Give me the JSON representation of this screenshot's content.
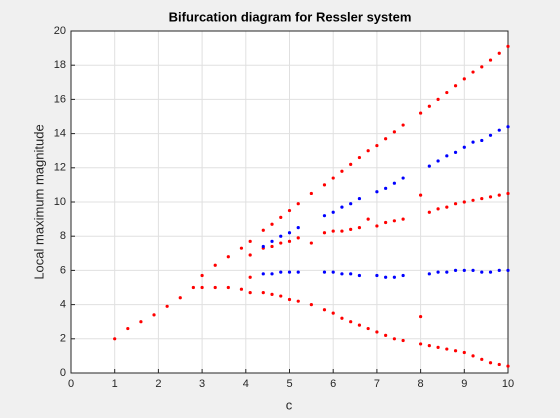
{
  "chart_data": {
    "type": "scatter",
    "title": "Bifurcation diagram for Ressler system",
    "x_label": "c",
    "y_label": "Local maximum magnitude",
    "xlim": [
      0,
      10
    ],
    "xticks": [
      0,
      1,
      2,
      3,
      4,
      5,
      6,
      7,
      8,
      9,
      10
    ],
    "ylim": [
      0,
      20
    ],
    "yticks": [
      0,
      2,
      4,
      6,
      8,
      10,
      12,
      14,
      16,
      18,
      20
    ],
    "grid": true,
    "series": [
      {
        "color": "#ff0000",
        "x": [
          1.0,
          1.3,
          1.6,
          1.9,
          2.2,
          2.5,
          2.8,
          3.0,
          3.0,
          3.3,
          3.3,
          3.6,
          3.6,
          3.9,
          3.9,
          4.1,
          4.1,
          4.1,
          4.1,
          4.4,
          4.4,
          4.4,
          4.6,
          4.6,
          4.6,
          4.8,
          4.8,
          4.8,
          5.0,
          5.0,
          5.0,
          5.2,
          5.2,
          5.2,
          5.8,
          5.8,
          5.8,
          6.0,
          6.0,
          6.0,
          6.2,
          6.2,
          6.2,
          6.4,
          6.4,
          6.4,
          6.6,
          6.6,
          6.6,
          7.0,
          7.0,
          7.0,
          7.2,
          7.2,
          7.2,
          7.4,
          7.4,
          7.4,
          7.6,
          7.6,
          7.6,
          8.2,
          8.2,
          8.2,
          8.4,
          8.4,
          8.4,
          8.6,
          8.6,
          8.6,
          8.8,
          8.8,
          8.8,
          9.0,
          9.0,
          9.0,
          9.2,
          9.2,
          9.2,
          9.4,
          9.4,
          9.4,
          9.6,
          9.6,
          9.6,
          9.8,
          9.8,
          9.8,
          10.0,
          10.0,
          10.0,
          5.5,
          5.5,
          5.5,
          6.8,
          6.8,
          6.8,
          8.0,
          8.0,
          8.0,
          8.0
        ],
        "y": [
          2.0,
          2.6,
          3.0,
          3.4,
          3.9,
          4.4,
          5.0,
          5.7,
          5.0,
          6.3,
          5.0,
          6.8,
          5.0,
          7.3,
          4.9,
          7.7,
          6.9,
          5.6,
          4.7,
          8.35,
          4.7,
          7.3,
          8.7,
          4.6,
          7.4,
          9.1,
          4.5,
          7.6,
          9.5,
          4.3,
          7.7,
          9.9,
          4.2,
          7.9,
          11.0,
          3.7,
          8.2,
          11.4,
          3.5,
          8.3,
          11.8,
          3.2,
          8.3,
          12.2,
          3.0,
          8.4,
          12.6,
          2.8,
          8.5,
          13.3,
          2.4,
          8.6,
          13.7,
          2.2,
          8.8,
          14.1,
          2.0,
          8.9,
          14.5,
          1.9,
          9.0,
          15.6,
          1.6,
          9.4,
          16.0,
          1.5,
          9.6,
          16.4,
          1.4,
          9.7,
          16.8,
          1.3,
          9.9,
          17.2,
          1.2,
          10.0,
          17.6,
          1.0,
          10.1,
          17.9,
          0.8,
          10.2,
          18.3,
          0.6,
          10.3,
          18.7,
          0.5,
          10.4,
          19.1,
          0.4,
          10.5,
          10.5,
          7.6,
          4.0,
          13.0,
          2.6,
          9.0,
          15.2,
          1.7,
          3.3,
          10.4
        ]
      },
      {
        "color": "#0000ff",
        "x": [
          4.4,
          4.4,
          4.6,
          4.6,
          4.8,
          4.8,
          5.0,
          5.0,
          5.2,
          5.2,
          5.8,
          5.8,
          6.0,
          6.0,
          6.2,
          6.2,
          6.4,
          6.4,
          6.6,
          6.6,
          7.0,
          7.0,
          7.2,
          7.2,
          7.4,
          7.4,
          7.6,
          7.6,
          8.2,
          8.2,
          8.4,
          8.4,
          8.6,
          8.6,
          8.8,
          8.8,
          9.0,
          9.0,
          9.2,
          9.2,
          9.4,
          9.4,
          9.6,
          9.6,
          9.8,
          9.8,
          10.0,
          10.0
        ],
        "y": [
          5.8,
          7.4,
          5.8,
          7.7,
          5.9,
          8.0,
          5.9,
          8.2,
          5.9,
          8.5,
          5.9,
          9.2,
          5.9,
          9.4,
          5.8,
          9.7,
          5.8,
          9.9,
          5.7,
          10.2,
          5.7,
          10.6,
          5.6,
          10.8,
          5.6,
          11.1,
          5.7,
          11.4,
          5.8,
          12.1,
          5.9,
          12.4,
          5.9,
          12.7,
          6.0,
          12.9,
          6.0,
          13.2,
          6.0,
          13.5,
          5.9,
          13.6,
          5.9,
          13.9,
          6.0,
          14.2,
          6.0,
          14.4
        ]
      }
    ]
  }
}
